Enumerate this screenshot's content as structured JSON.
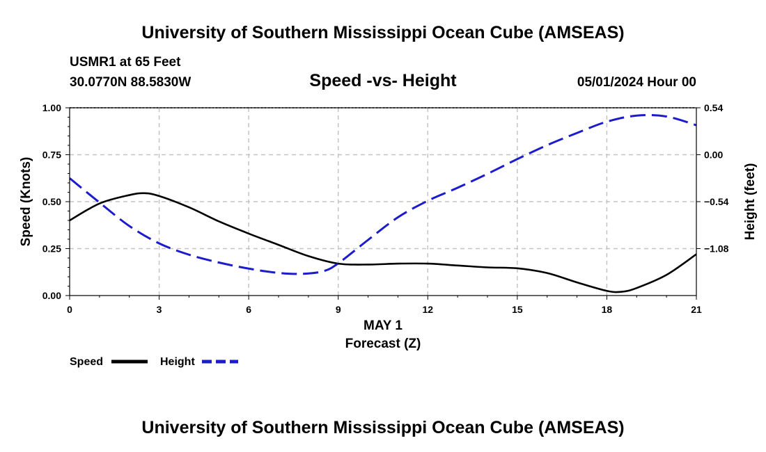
{
  "title_top": "University of Southern Mississippi Ocean Cube (AMSEAS)",
  "title_bottom": "University of Southern Mississippi Ocean Cube (AMSEAS)",
  "station": "USMR1 at 65 Feet",
  "coords": "30.0770N  88.5830W",
  "datetime": "05/01/2024 Hour 00",
  "chart_data": {
    "type": "line",
    "title": "Speed -vs- Height",
    "xlabel": "Forecast (Z)",
    "xlabel_date": "MAY 1",
    "ylabel": "Speed (Knots)",
    "ylabel_right": "Height (feet)",
    "xlim": [
      0,
      21
    ],
    "ylim": [
      0,
      1
    ],
    "ylim_right": [
      -1.62,
      0.54
    ],
    "x_ticks": [
      0,
      3,
      6,
      9,
      12,
      15,
      18,
      21
    ],
    "x_tick_labels": [
      "0",
      "3",
      "6",
      "9",
      "12",
      "15",
      "18",
      "21"
    ],
    "y_ticks": [
      0,
      0.25,
      0.5,
      0.75,
      1.0
    ],
    "y_tick_labels": [
      "0.00",
      "0.25",
      "0.50",
      "0.75",
      "1.00"
    ],
    "y_right_ticks": [
      0.54,
      0.0,
      -0.54,
      -1.08
    ],
    "y_right_tick_labels": [
      "0.54",
      "0.00",
      "−0.54",
      "−1.08"
    ],
    "grid": true,
    "legend": "bottom-left",
    "series": [
      {
        "name": "Speed",
        "axis": "left",
        "color": "#000000",
        "dash": "solid",
        "x": [
          0,
          1,
          2,
          2.5,
          3,
          4,
          5,
          6,
          7,
          8,
          9,
          10,
          11,
          12,
          13,
          14,
          15,
          16,
          17,
          18,
          18.5,
          19,
          20,
          21
        ],
        "values": [
          0.4,
          0.49,
          0.535,
          0.545,
          0.53,
          0.47,
          0.395,
          0.33,
          0.27,
          0.21,
          0.17,
          0.165,
          0.17,
          0.17,
          0.16,
          0.15,
          0.145,
          0.12,
          0.07,
          0.025,
          0.02,
          0.04,
          0.11,
          0.22
        ]
      },
      {
        "name": "Height",
        "axis": "right",
        "color": "#1c1ccc",
        "dash": "dashed",
        "x": [
          0,
          1,
          2,
          3,
          4,
          5,
          6,
          7,
          7.8,
          8.5,
          9,
          10,
          11,
          12,
          13,
          14,
          15,
          16,
          17,
          18,
          19,
          20,
          21
        ],
        "values": [
          -0.27,
          -0.55,
          -0.82,
          -1.02,
          -1.15,
          -1.24,
          -1.31,
          -1.36,
          -1.37,
          -1.34,
          -1.25,
          -0.98,
          -0.72,
          -0.53,
          -0.38,
          -0.22,
          -0.05,
          0.11,
          0.25,
          0.38,
          0.45,
          0.44,
          0.34
        ]
      }
    ]
  }
}
